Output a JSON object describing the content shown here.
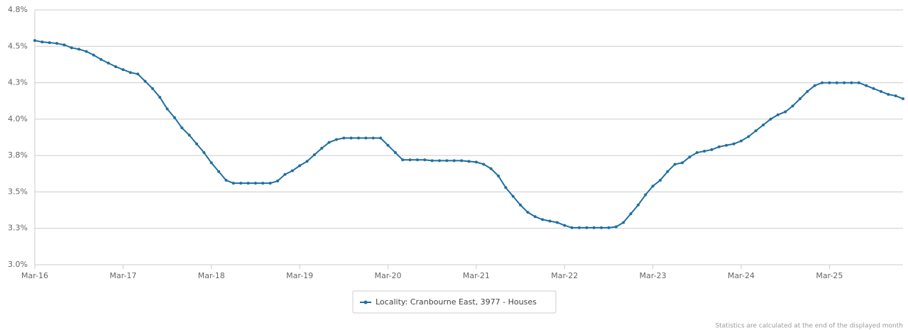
{
  "chart_data": {
    "type": "line",
    "categories": [
      "Mar-16",
      null,
      null,
      null,
      null,
      null,
      null,
      null,
      null,
      null,
      null,
      null,
      "Mar-17",
      null,
      null,
      null,
      null,
      null,
      null,
      null,
      null,
      null,
      null,
      null,
      "Mar-18",
      null,
      null,
      null,
      null,
      null,
      null,
      null,
      null,
      null,
      null,
      null,
      "Mar-19",
      null,
      null,
      null,
      null,
      null,
      null,
      null,
      null,
      null,
      null,
      null,
      "Mar-20",
      null,
      null,
      null,
      null,
      null,
      null,
      null,
      null,
      null,
      null,
      null,
      "Mar-21",
      null,
      null,
      null,
      null,
      null,
      null,
      null,
      null,
      null,
      null,
      null,
      "Mar-22",
      null,
      null,
      null,
      null,
      null,
      null,
      null,
      null,
      null,
      null,
      null,
      "Mar-23",
      null,
      null,
      null,
      null,
      null,
      null,
      null,
      null,
      null,
      null,
      null,
      "Mar-24",
      null,
      null,
      null,
      null,
      null,
      null,
      null,
      null,
      null,
      null,
      null,
      "Mar-25",
      null,
      null,
      null,
      null,
      null,
      null,
      null,
      null,
      null,
      null
    ],
    "series": [
      {
        "name": "Locality: Cranbourne East, 3977 - Houses",
        "color": "#1f6fa0",
        "values": [
          4.54,
          4.53,
          4.525,
          4.52,
          4.51,
          4.49,
          4.48,
          4.465,
          4.44,
          4.41,
          4.385,
          4.36,
          4.34,
          4.32,
          4.31,
          4.26,
          4.21,
          4.15,
          4.07,
          4.01,
          3.94,
          3.89,
          3.83,
          3.77,
          3.7,
          3.64,
          3.58,
          3.56,
          3.56,
          3.56,
          3.56,
          3.56,
          3.56,
          3.575,
          3.62,
          3.645,
          3.68,
          3.71,
          3.755,
          3.8,
          3.84,
          3.86,
          3.87,
          3.87,
          3.87,
          3.87,
          3.87,
          3.87,
          3.82,
          3.77,
          3.72,
          3.72,
          3.72,
          3.72,
          3.715,
          3.715,
          3.715,
          3.715,
          3.715,
          3.71,
          3.705,
          3.69,
          3.66,
          3.61,
          3.53,
          3.47,
          3.41,
          3.36,
          3.33,
          3.31,
          3.3,
          3.29,
          3.27,
          3.254,
          3.254,
          3.254,
          3.254,
          3.254,
          3.254,
          3.26,
          3.29,
          3.35,
          3.41,
          3.48,
          3.54,
          3.58,
          3.64,
          3.69,
          3.7,
          3.74,
          3.77,
          3.78,
          3.79,
          3.81,
          3.82,
          3.83,
          3.85,
          3.88,
          3.92,
          3.96,
          4.0,
          4.03,
          4.05,
          4.09,
          4.14,
          4.19,
          4.23,
          4.25,
          4.25,
          4.25,
          4.25,
          4.25,
          4.25,
          4.23,
          4.21,
          4.19,
          4.17,
          4.16,
          4.14
        ]
      }
    ],
    "ylim": [
      3.0,
      4.75
    ],
    "yticks": [
      {
        "value": 3.0,
        "label": "3.0%"
      },
      {
        "value": 3.25,
        "label": "3.3%"
      },
      {
        "value": 3.5,
        "label": "3.5%"
      },
      {
        "value": 3.75,
        "label": "3.8%"
      },
      {
        "value": 4.0,
        "label": "4.0%"
      },
      {
        "value": 4.25,
        "label": "4.3%"
      },
      {
        "value": 4.5,
        "label": "4.5%"
      },
      {
        "value": 4.75,
        "label": "4.8%"
      }
    ],
    "grid": true,
    "legend": "bottom",
    "note": "Statistics are calculated at the end of the displayed month"
  }
}
